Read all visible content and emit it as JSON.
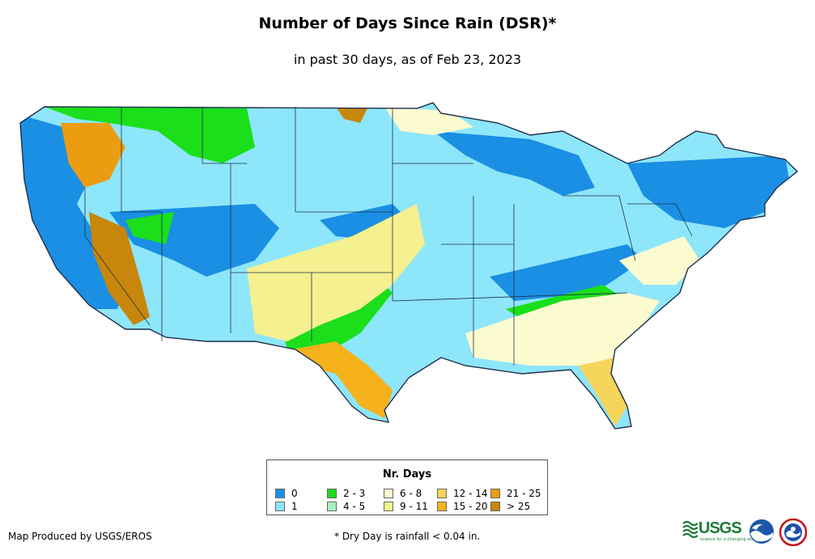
{
  "title": "Number of Days Since Rain (DSR)*",
  "subtitle": "in past 30 days, as of Feb 23, 2023",
  "legend": {
    "title": "Nr. Days",
    "items": [
      {
        "label": "0",
        "color": "#1a8fe3"
      },
      {
        "label": "1",
        "color": "#8ee6fb"
      },
      {
        "label": "2 - 3",
        "color": "#1adf1a"
      },
      {
        "label": "4 - 5",
        "color": "#a8f0c0"
      },
      {
        "label": "6 - 8",
        "color": "#fbfbcf"
      },
      {
        "label": "9 - 11",
        "color": "#f5f090"
      },
      {
        "label": "12 - 14",
        "color": "#f7d55a"
      },
      {
        "label": "15 - 20",
        "color": "#f5b21a"
      },
      {
        "label": "21 - 25",
        "color": "#ec9c10"
      },
      {
        "label": "> 25",
        "color": "#c8860a"
      }
    ]
  },
  "credit": "Map Produced by USGS/EROS",
  "footnote": "* Dry Day is rainfall < 0.04 in.",
  "logos": {
    "usgs": "USGS",
    "usgs_tagline": "science for a changing world",
    "noaa": "noaa-logo",
    "nws": "nws-logo"
  }
}
